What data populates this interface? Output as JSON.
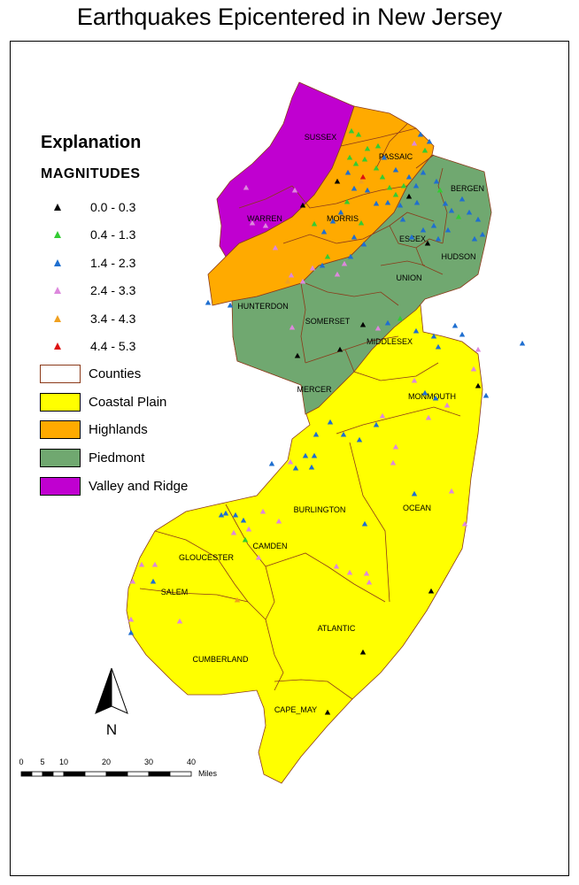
{
  "title": "Earthquakes Epicentered in New Jersey",
  "colors": {
    "coastal_plain": "#ffff00",
    "highlands": "#ffaa00",
    "piedmont": "#70a870",
    "valley_ridge": "#c000d0",
    "county_line": "#8b3a1a"
  },
  "legend": {
    "title": "Explanation",
    "magnitudes_title": "MAGNITUDES",
    "magnitudes": [
      {
        "label": "0.0 - 0.3",
        "color": "#000000"
      },
      {
        "label": "0.4 - 1.3",
        "color": "#33cc33"
      },
      {
        "label": "1.4 - 2.3",
        "color": "#1f6fd0"
      },
      {
        "label": "2.4 - 3.3",
        "color": "#dd88dd"
      },
      {
        "label": "3.4 - 4.3",
        "color": "#f0a020"
      },
      {
        "label": "4.4 - 5.3",
        "color": "#dd1111"
      }
    ],
    "areas": [
      {
        "label": "Counties",
        "swatch": "#ffffff",
        "border": "#8b3a1a"
      },
      {
        "label": "Coastal Plain",
        "swatch": "#ffff00",
        "border": "#000000"
      },
      {
        "label": "Highlands",
        "swatch": "#ffaa00",
        "border": "#000000"
      },
      {
        "label": "Piedmont",
        "swatch": "#70a870",
        "border": "#000000"
      },
      {
        "label": "Valley and Ridge",
        "swatch": "#c000d0",
        "border": "#000000"
      }
    ]
  },
  "counties": [
    "SUSSEX",
    "PASSAIC",
    "BERGEN",
    "WARREN",
    "MORRIS",
    "ESSEX",
    "HUDSON",
    "UNION",
    "HUNTERDON",
    "SOMERSET",
    "MIDDLESEX",
    "MERCER",
    "MONMOUTH",
    "BURLINGTON",
    "OCEAN",
    "GLOUCESTER",
    "CAMDEN",
    "SALEM",
    "ATLANTIC",
    "CUMBERLAND",
    "CAPE_MAY"
  ],
  "north_arrow": {
    "label": "N",
    "icon": "north-arrow-icon"
  },
  "scale_bar": {
    "ticks": [
      "0",
      "5",
      "10",
      "20",
      "30",
      "40"
    ],
    "unit": "Miles"
  }
}
